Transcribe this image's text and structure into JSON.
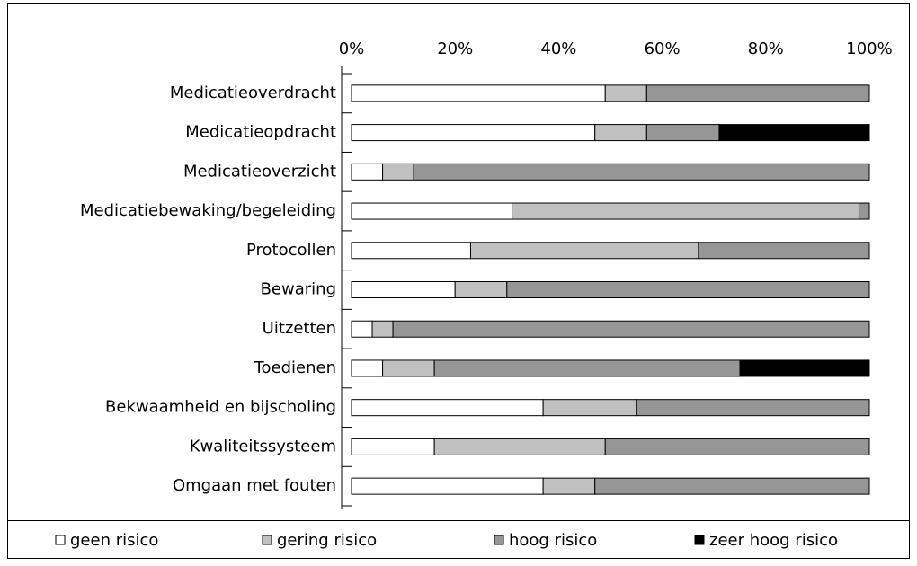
{
  "chart_data": {
    "type": "stacked-barh",
    "categories": [
      "Medicatieoverdracht",
      "Medicatieopdracht",
      "Medicatieoverzicht",
      "Medicatiebewaking/begeleiding",
      "Protocollen",
      "Bewaring",
      "Uitzetten",
      "Toedienen",
      "Bekwaamheid en bijscholing",
      "Kwaliteitssysteem",
      "Omgaan met fouten"
    ],
    "series": [
      {
        "name": "geen risico",
        "color": "#ffffff",
        "values": [
          49,
          47,
          6,
          31,
          23,
          20,
          4,
          6,
          37,
          16,
          37
        ]
      },
      {
        "name": "gering risico",
        "color": "#c0c0c0",
        "values": [
          8,
          10,
          6,
          67,
          44,
          10,
          4,
          10,
          18,
          33,
          10
        ]
      },
      {
        "name": "hoog risico",
        "color": "#969696",
        "values": [
          43,
          14,
          88,
          2,
          33,
          70,
          92,
          59,
          45,
          51,
          53
        ]
      },
      {
        "name": "zeer hoog risico",
        "color": "#000000",
        "values": [
          0,
          29,
          0,
          0,
          0,
          0,
          0,
          25,
          0,
          0,
          0
        ]
      }
    ],
    "xlim": [
      0,
      100
    ],
    "xticks": [
      {
        "value": 0,
        "label": "0%"
      },
      {
        "value": 20,
        "label": "20%"
      },
      {
        "value": 40,
        "label": "40%"
      },
      {
        "value": 60,
        "label": "60%"
      },
      {
        "value": 80,
        "label": "80%"
      },
      {
        "value": 100,
        "label": "100%"
      }
    ],
    "legend": "bottom"
  }
}
